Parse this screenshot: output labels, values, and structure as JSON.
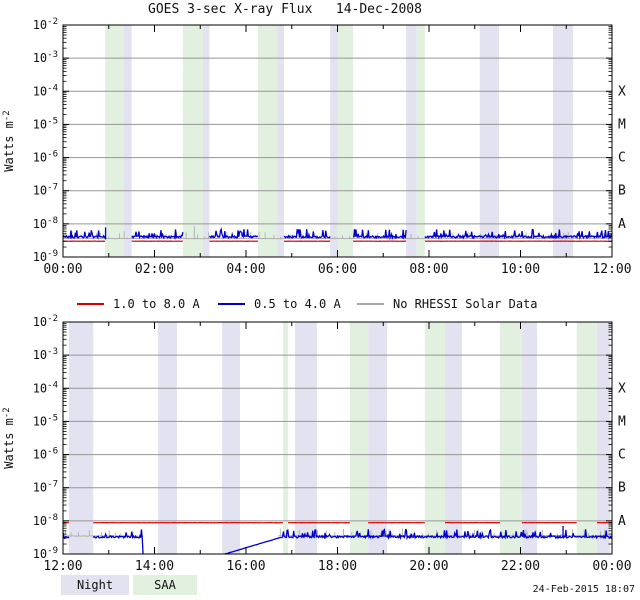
{
  "title": "GOES 3-sec X-ray Flux   14-Dec-2008",
  "generated_timestamp": "24-Feb-2015 18:07",
  "colors": {
    "red": "#dd0000",
    "blue": "#0000cc",
    "gray": "#a9a9a9",
    "gridline": "#969696"
  },
  "legend": {
    "series": [
      {
        "name": "goes-long-channel",
        "label": "1.0 to 8.0 A",
        "color": "#dd0000"
      },
      {
        "name": "goes-short-channel",
        "label": "0.5 to 4.0 A",
        "color": "#0000cc"
      },
      {
        "name": "no-rhessi-solar-data",
        "label": "No RHESSI Solar Data",
        "color": "#a9a9a9"
      }
    ]
  },
  "band_legend": {
    "night": {
      "label": "Night",
      "color": "#e2e2f0"
    },
    "saa": {
      "label": "SAA",
      "color": "#e2f0e0"
    }
  },
  "axes": {
    "ylabel": {
      "base": "Watts m",
      "exponent": "-2"
    },
    "y_tick_exponents": [
      -2,
      -3,
      -4,
      -5,
      -6,
      -7,
      -8,
      -9
    ],
    "flare_class_labels": [
      {
        "label": "X",
        "exp": -4
      },
      {
        "label": "M",
        "exp": -5
      },
      {
        "label": "C",
        "exp": -6
      },
      {
        "label": "B",
        "exp": -7
      },
      {
        "label": "A",
        "exp": -8
      }
    ]
  },
  "chart_data": [
    {
      "type": "line",
      "panel": "00:00-12:00 UT",
      "x_start_hour": 0,
      "x_end_hour": 12,
      "x_tick_labels": [
        "00:00",
        "02:00",
        "04:00",
        "06:00",
        "08:00",
        "10:00",
        "12:00"
      ],
      "y_log_exponent_range": [
        -9,
        -2
      ],
      "grid": true,
      "night_bands_hours": [
        [
          1.33,
          1.5
        ],
        [
          3.06,
          3.2
        ],
        [
          4.68,
          4.83
        ],
        [
          5.84,
          6.01
        ],
        [
          7.5,
          7.73
        ],
        [
          9.11,
          9.53
        ],
        [
          10.71,
          11.15
        ]
      ],
      "saa_bands_hours": [
        [
          0.92,
          1.33
        ],
        [
          2.62,
          3.06
        ],
        [
          4.26,
          4.68
        ],
        [
          6.01,
          6.34
        ],
        [
          7.73,
          7.91
        ]
      ],
      "series": [
        {
          "name": "no-rhessi-gray-top",
          "color_key": "gray",
          "style": "tickline",
          "segments": [
            {
              "t0": 0,
              "t1": 12,
              "level": 3.6e-09
            }
          ],
          "spikes": [
            {
              "t": 2.87,
              "peak": 8.5e-09
            }
          ]
        },
        {
          "name": "goes-1-8A-top",
          "color_key": "red",
          "style": "flat",
          "segments": [
            {
              "t0": 0,
              "t1": 0.92,
              "level": 3e-09
            },
            {
              "t0": 1.5,
              "t1": 2.62,
              "level": 3e-09
            },
            {
              "t0": 3.2,
              "t1": 4.26,
              "level": 3e-09
            },
            {
              "t0": 4.83,
              "t1": 5.84,
              "level": 3e-09
            },
            {
              "t0": 6.34,
              "t1": 7.5,
              "level": 3e-09
            },
            {
              "t0": 7.91,
              "t1": 12,
              "level": 3e-09
            }
          ]
        },
        {
          "name": "goes-05-4A-top",
          "color_key": "blue",
          "style": "noisy",
          "segments": [
            {
              "t0": 0,
              "t1": 0.92,
              "level": 4.2e-09
            },
            {
              "t0": 1.5,
              "t1": 2.62,
              "level": 4.2e-09
            },
            {
              "t0": 3.2,
              "t1": 4.26,
              "level": 4.2e-09
            },
            {
              "t0": 4.83,
              "t1": 5.84,
              "level": 4.2e-09
            },
            {
              "t0": 6.34,
              "t1": 7.5,
              "level": 4.2e-09
            },
            {
              "t0": 7.91,
              "t1": 12,
              "level": 4.2e-09
            }
          ],
          "spikes": [
            {
              "t": 0.93,
              "peak": 7.8e-09
            }
          ]
        }
      ]
    },
    {
      "type": "line",
      "panel": "12:00-24:00 UT",
      "x_start_hour": 12,
      "x_end_hour": 24,
      "x_tick_labels": [
        "12:00",
        "14:00",
        "16:00",
        "18:00",
        "20:00",
        "22:00",
        "00:00"
      ],
      "y_log_exponent_range": [
        -9,
        -2
      ],
      "grid": true,
      "night_bands_hours": [
        [
          12.13,
          12.66
        ],
        [
          14.08,
          14.49
        ],
        [
          15.48,
          15.87
        ],
        [
          17.07,
          17.55
        ],
        [
          18.67,
          19.08
        ],
        [
          20.35,
          20.72
        ],
        [
          22.03,
          22.36
        ],
        [
          23.67,
          23.96
        ]
      ],
      "saa_bands_hours": [
        [
          16.81,
          16.92
        ],
        [
          18.27,
          18.67
        ],
        [
          19.91,
          20.35
        ],
        [
          21.55,
          22.03
        ],
        [
          23.23,
          23.67
        ]
      ],
      "series": [
        {
          "name": "no-rhessi-gray-bottom",
          "color_key": "gray",
          "style": "tickline",
          "segments": [
            {
              "t0": 12,
              "t1": 13.73,
              "level": 3.5e-09
            },
            {
              "t0": 16.7,
              "t1": 24,
              "level": 3.55e-09
            }
          ],
          "spikes": [
            {
              "t": 19.06,
              "peak": 5e-09
            },
            {
              "t": 20.6,
              "peak": 4.5e-09
            },
            {
              "t": 22.12,
              "peak": 5.5e-09
            }
          ]
        },
        {
          "name": "goes-1-8A-bottom",
          "color_key": "red",
          "style": "flat",
          "segments": [
            {
              "t0": 12,
              "t1": 12.13,
              "level": 8.8e-09
            },
            {
              "t0": 12.66,
              "t1": 16.81,
              "level": 8.8e-09
            },
            {
              "t0": 16.92,
              "t1": 18.27,
              "level": 8.8e-09
            },
            {
              "t0": 18.67,
              "t1": 19.91,
              "level": 8.8e-09
            },
            {
              "t0": 20.35,
              "t1": 21.55,
              "level": 8.8e-09
            },
            {
              "t0": 22.03,
              "t1": 23.23,
              "level": 8.8e-09
            },
            {
              "t0": 23.67,
              "t1": 24,
              "level": 8.8e-09
            }
          ]
        },
        {
          "name": "goes-05-4A-bottom",
          "color_key": "blue",
          "style": "noisy",
          "segments": [
            {
              "t0": 12,
              "t1": 12.13,
              "level": 3.3e-09
            },
            {
              "t0": 12.66,
              "t1": 13.73,
              "level": 3.4e-09
            },
            {
              "t0": 13.73,
              "t1": 13.75,
              "v0": 3.4e-09,
              "v1": 1e-09,
              "smooth": true
            },
            {
              "t0": 15.54,
              "t1": 16.77,
              "v0": 1e-09,
              "v1": 3.2e-09,
              "smooth": true
            },
            {
              "t0": 16.77,
              "t1": 24,
              "level": 3.4e-09
            }
          ],
          "spikes": [
            {
              "t": 22.93,
              "peak": 7e-09
            }
          ]
        }
      ]
    }
  ]
}
